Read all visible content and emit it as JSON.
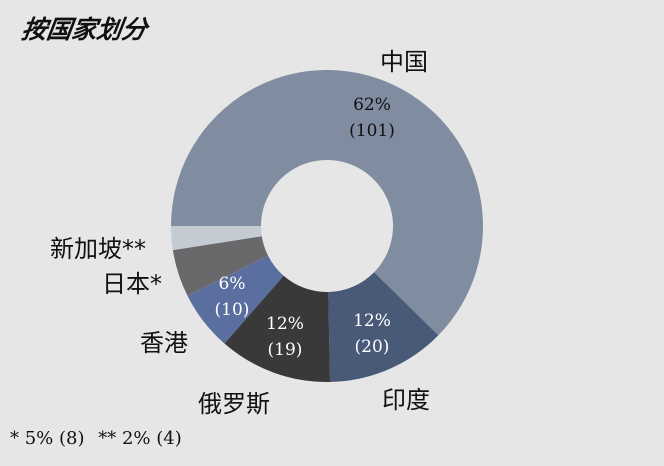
{
  "title": "按国家划分",
  "chart_data": {
    "type": "pie",
    "subtype": "donut",
    "title": "按国家划分",
    "start_angle_deg": 270,
    "direction": "clockwise",
    "categories": [
      "中国",
      "印度",
      "俄罗斯",
      "香港",
      "日本*",
      "新加坡**"
    ],
    "percent": [
      62,
      12,
      12,
      6,
      5,
      2
    ],
    "values": [
      101,
      20,
      19,
      10,
      8,
      4
    ],
    "colors": [
      "#808da1",
      "#485a78",
      "#393939",
      "#5a6fa0",
      "#69696b",
      "#c4cbd3"
    ],
    "data_labels": [
      {
        "pct": "62%",
        "count": "(101)"
      },
      {
        "pct": "12%",
        "count": "(20)"
      },
      {
        "pct": "12%",
        "count": "(19)"
      },
      {
        "pct": "6%",
        "count": "(10)"
      },
      null,
      null
    ],
    "footnote": "* 5% (8)  ** 2% (4)",
    "legend": "none (direct labels)"
  },
  "labels": {
    "china": "中国",
    "india": "印度",
    "russia": "俄罗斯",
    "hongkong": "香港",
    "japan": "日本*",
    "singapore": "新加坡**"
  },
  "values": {
    "china_pct": "62%",
    "china_count": "(101)",
    "india_pct": "12%",
    "india_count": "(20)",
    "russia_pct": "12%",
    "russia_count": "(19)",
    "hongkong_pct": "6%",
    "hongkong_count": "(10)"
  },
  "footnote": {
    "japan": "* 5% (8)",
    "singapore": "** 2% (4)"
  }
}
